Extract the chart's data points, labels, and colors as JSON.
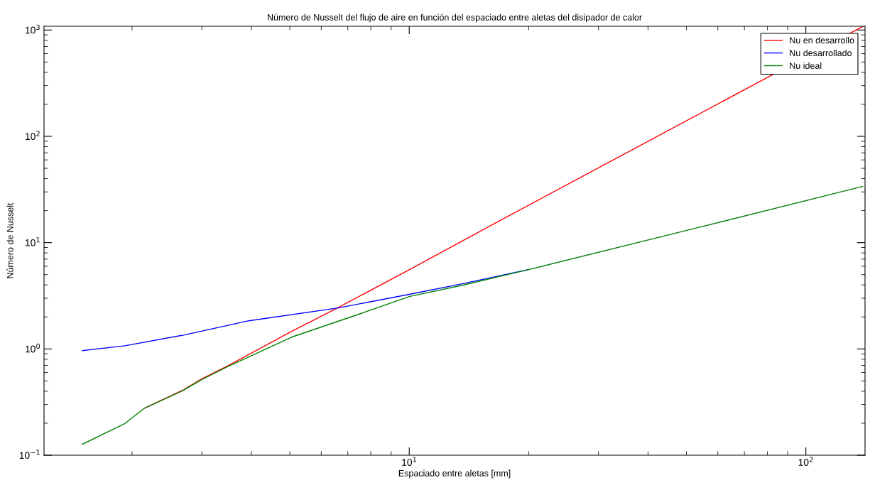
{
  "chart_data": {
    "type": "line",
    "title": "Número de Nusselt del flujo de aire en función del espaciado entre aletas del disipador de calor",
    "xlabel": "Espaciado entre aletas [mm]",
    "ylabel": "Número de Nusselt",
    "log": "xy",
    "grid": false,
    "legend": "top right",
    "marker": "none",
    "line_style": "solid",
    "xlim": [
      1.2,
      141
    ],
    "ylim": [
      0.1,
      1085
    ],
    "xticks": [
      {
        "value": 10,
        "label": "10$^{1}$"
      },
      {
        "value": 100,
        "label": "10$^{2}$"
      }
    ],
    "yticks": [
      {
        "value": 0.1,
        "label": "10$^{−1}$"
      },
      {
        "value": 1,
        "label": "10$^{0}$"
      },
      {
        "value": 10,
        "label": "10$^{1}$"
      },
      {
        "value": 100,
        "label": "10$^{2}$"
      },
      {
        "value": 1000,
        "label": "10$^{3}$"
      }
    ],
    "series": [
      {
        "name": "Nu en desarrollo",
        "color": "#ff0000",
        "x": [
          2.15,
          2.69,
          2.99,
          3.48,
          5.05,
          6.62,
          10,
          16.7,
          79.8,
          139
        ],
        "values": [
          0.277,
          0.41,
          0.52,
          0.69,
          1.46,
          2.45,
          5.56,
          15.7,
          356,
          1079
        ]
      },
      {
        "name": "Nu desarrollado",
        "color": "#0000ff",
        "x": [
          1.5,
          1.92,
          2.7,
          3.94,
          6.62,
          10,
          13.6,
          20.0
        ],
        "values": [
          0.965,
          1.07,
          1.35,
          1.84,
          2.43,
          3.26,
          4.1,
          5.58
        ]
      },
      {
        "name": "Nu ideal",
        "color": "#008000",
        "x": [
          1.5,
          1.92,
          2.15,
          2.69,
          2.99,
          3.48,
          5.05,
          7.46,
          10,
          13.6,
          20.0,
          52.9,
          139
        ],
        "values": [
          0.127,
          0.199,
          0.277,
          0.406,
          0.512,
          0.679,
          1.29,
          2.12,
          3.11,
          3.97,
          5.58,
          13.7,
          33.8
        ]
      }
    ]
  }
}
